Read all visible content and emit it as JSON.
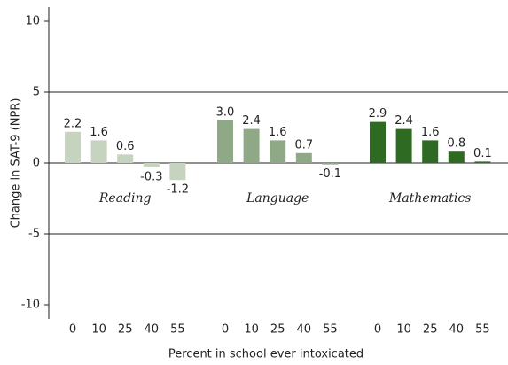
{
  "chart_data": {
    "type": "bar",
    "xlabel": "Percent in school ever intoxicated",
    "ylabel": "Change in SAT-9 (NPR)",
    "categories": [
      "0",
      "10",
      "25",
      "40",
      "55"
    ],
    "series": [
      {
        "name": "Reading",
        "color": "#c5d3bf",
        "values": [
          2.2,
          1.6,
          0.6,
          -0.3,
          -1.2
        ],
        "value_labels": [
          "2.2",
          "1.6",
          "0.6",
          "-0.3",
          "-1.2"
        ]
      },
      {
        "name": "Language",
        "color": "#8fa886",
        "values": [
          3.0,
          2.4,
          1.6,
          0.7,
          -0.1
        ],
        "value_labels": [
          "3.0",
          "2.4",
          "1.6",
          "0.7",
          "-0.1"
        ]
      },
      {
        "name": "Mathematics",
        "color": "#2e6a22",
        "values": [
          2.9,
          2.4,
          1.6,
          0.8,
          0.1
        ],
        "value_labels": [
          "2.9",
          "2.4",
          "1.6",
          "0.8",
          "0.1"
        ]
      }
    ],
    "ylim": [
      -11,
      11
    ],
    "yticks": [
      10,
      5,
      0,
      -5,
      -10
    ],
    "grid": true
  }
}
